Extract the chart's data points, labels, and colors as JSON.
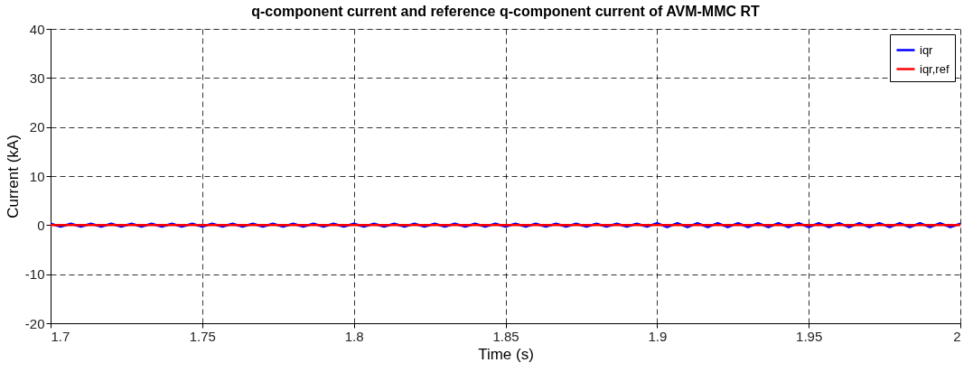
{
  "chart_data": {
    "type": "line",
    "title": "q-component current and reference q-component current of AVM-MMC RT",
    "xlabel": "Time (s)",
    "ylabel": "Current (kA)",
    "xlim": [
      1.7,
      2.0
    ],
    "ylim": [
      -20,
      40
    ],
    "xticks": [
      1.7,
      1.75,
      1.8,
      1.85,
      1.9,
      1.95,
      2
    ],
    "yticks": [
      -20,
      -10,
      0,
      10,
      20,
      30,
      40
    ],
    "grid": true,
    "legend": "top right",
    "line_style": "solid",
    "marker": "none",
    "series": [
      {
        "name": "iqr",
        "color": "#0000ff",
        "x": [
          1.7,
          1.7033,
          1.7067,
          1.71,
          1.7133,
          1.7167,
          1.72,
          1.7233,
          1.7267,
          1.73,
          1.7333,
          1.7367,
          1.74,
          1.7433,
          1.7467,
          1.75,
          1.7533,
          1.7567,
          1.76,
          1.7633,
          1.7667,
          1.77,
          1.7733,
          1.7767,
          1.78,
          1.7833,
          1.7867,
          1.79,
          1.7933,
          1.7967,
          1.8,
          1.8033,
          1.8067,
          1.81,
          1.8133,
          1.8167,
          1.82,
          1.8233,
          1.8267,
          1.83,
          1.8333,
          1.8367,
          1.84,
          1.8433,
          1.8467,
          1.85,
          1.8533,
          1.8567,
          1.86,
          1.8633,
          1.8667,
          1.87,
          1.8733,
          1.8767,
          1.88,
          1.8833,
          1.8867,
          1.89,
          1.8933,
          1.8967,
          1.9,
          1.9033,
          1.9067,
          1.91,
          1.9133,
          1.9167,
          1.92,
          1.9233,
          1.9267,
          1.93,
          1.9333,
          1.9367,
          1.94,
          1.9433,
          1.9467,
          1.95,
          1.9533,
          1.9567,
          1.96,
          1.9633,
          1.9667,
          1.97,
          1.9733,
          1.9767,
          1.98,
          1.9833,
          1.9867,
          1.99,
          1.9933,
          1.9967,
          2.0
        ],
        "values": [
          0.3,
          -0.3,
          0.3,
          -0.3,
          0.3,
          -0.3,
          0.3,
          -0.3,
          0.3,
          -0.3,
          0.3,
          -0.3,
          0.3,
          -0.3,
          0.3,
          -0.3,
          0.3,
          -0.3,
          0.3,
          -0.3,
          0.3,
          -0.3,
          0.3,
          -0.3,
          0.3,
          -0.3,
          0.3,
          -0.3,
          0.3,
          -0.3,
          0.3,
          -0.3,
          0.3,
          -0.3,
          0.3,
          -0.3,
          0.3,
          -0.3,
          0.3,
          -0.3,
          0.3,
          -0.3,
          0.3,
          -0.3,
          0.3,
          -0.3,
          0.3,
          -0.3,
          0.3,
          -0.3,
          0.3,
          -0.3,
          0.3,
          -0.3,
          0.3,
          -0.3,
          0.3,
          -0.3,
          0.3,
          -0.3,
          0.4,
          -0.4,
          0.4,
          -0.4,
          0.4,
          -0.4,
          0.4,
          -0.4,
          0.4,
          -0.4,
          0.4,
          -0.4,
          0.4,
          -0.4,
          0.4,
          -0.4,
          0.4,
          -0.4,
          0.4,
          -0.4,
          0.4,
          -0.4,
          0.4,
          -0.4,
          0.4,
          -0.4,
          0.4,
          -0.4,
          0.4,
          -0.4,
          0.3
        ]
      },
      {
        "name": "iqr,ref",
        "color": "#ff0000",
        "x": [
          1.7,
          2.0
        ],
        "values": [
          0,
          0
        ]
      }
    ]
  }
}
